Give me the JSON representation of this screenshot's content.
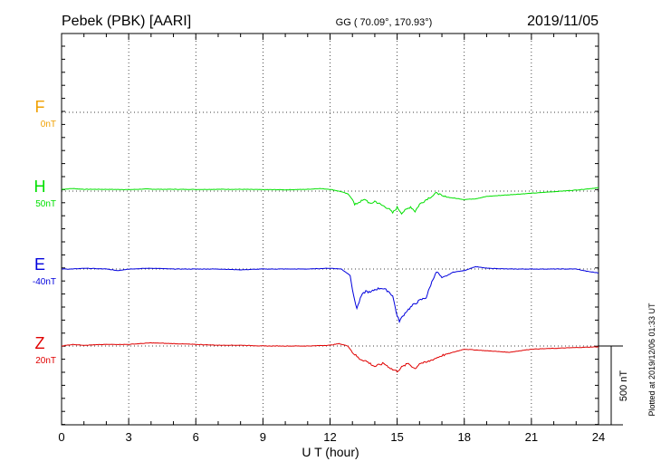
{
  "header": {
    "station": "Pebek (PBK)  [AARI]",
    "coords": "GG ( 70.09°, 170.93°)",
    "date": "2019/11/05"
  },
  "side_note": "Plotted at 2019/12/06 01:33 UT",
  "scale_label": "500 nT",
  "colors": {
    "F": "#f0a000",
    "H": "#00e000",
    "E": "#0000dd",
    "Z": "#e00000",
    "axis": "#000000",
    "grid": "#000000"
  },
  "chart_data": {
    "type": "line",
    "xlabel": "U T (hour)",
    "xlim": [
      0,
      24
    ],
    "xticks": [
      "0",
      "3",
      "6",
      "9",
      "12",
      "15",
      "18",
      "21",
      "24"
    ],
    "grid": true,
    "scale_bar_nT": 500,
    "channels": [
      {
        "name": "F",
        "baseline": "0nT",
        "color": "#f0a000"
      },
      {
        "name": "H",
        "baseline": "50nT",
        "color": "#00e000"
      },
      {
        "name": "E",
        "baseline": "-40nT",
        "color": "#0000dd"
      },
      {
        "name": "Z",
        "baseline": "20nT",
        "color": "#e00000"
      }
    ],
    "series": [
      {
        "name": "H",
        "x": [
          0,
          0.5,
          1,
          2,
          3,
          3.8,
          4.2,
          5,
          6,
          7,
          8,
          9,
          10,
          11,
          11.5,
          12,
          12.5,
          12.8,
          13.0,
          13.1,
          13.3,
          13.6,
          13.8,
          14.0,
          14.3,
          14.6,
          14.8,
          15.0,
          15.2,
          15.4,
          15.6,
          15.8,
          16.0,
          16.2,
          16.4,
          16.6,
          16.8,
          17.0,
          17.5,
          18.0,
          18.5,
          19.0,
          20.0,
          21.0,
          22.0,
          23.0,
          24.0
        ],
        "y": [
          0,
          5,
          0,
          0,
          -2,
          2,
          0,
          0,
          -1,
          0,
          0,
          -2,
          -3,
          0,
          5,
          0,
          -15,
          -30,
          -60,
          -100,
          -80,
          -65,
          -95,
          -75,
          -100,
          -120,
          -150,
          -115,
          -150,
          -130,
          -110,
          -140,
          -95,
          -75,
          -55,
          -40,
          -20,
          -45,
          -55,
          -65,
          -60,
          -45,
          -35,
          -25,
          -15,
          -5,
          10
        ]
      },
      {
        "name": "E",
        "x": [
          0,
          0.5,
          1,
          2,
          2.5,
          3,
          4,
          5,
          6,
          7,
          8,
          9,
          10,
          11,
          12,
          12.5,
          12.9,
          13.05,
          13.2,
          13.4,
          13.6,
          13.8,
          14.0,
          14.3,
          14.6,
          14.8,
          15.0,
          15.1,
          15.4,
          15.7,
          16.0,
          16.3,
          16.5,
          16.7,
          16.8,
          17.0,
          17.5,
          18.0,
          18.5,
          19.0,
          20.0,
          21.0,
          22.0,
          23.0,
          23.5,
          24.0
        ],
        "y": [
          0,
          0,
          5,
          0,
          -10,
          0,
          5,
          0,
          0,
          0,
          -5,
          0,
          0,
          0,
          5,
          0,
          -40,
          -170,
          -250,
          -170,
          -140,
          -150,
          -130,
          -120,
          -140,
          -170,
          -300,
          -330,
          -270,
          -230,
          -200,
          -180,
          -100,
          -30,
          -20,
          -60,
          -20,
          -10,
          15,
          5,
          0,
          0,
          0,
          0,
          -15,
          -25
        ]
      },
      {
        "name": "Z",
        "x": [
          0,
          0.5,
          1,
          2,
          3,
          4,
          5,
          6,
          7,
          8,
          9,
          10,
          11,
          12,
          12.4,
          12.8,
          13.0,
          13.3,
          13.6,
          14.0,
          14.4,
          14.8,
          15.0,
          15.2,
          15.5,
          15.8,
          16.0,
          16.3,
          16.6,
          17.0,
          17.5,
          18.0,
          19.0,
          20.0,
          21.0,
          22.0,
          23.0,
          24.0
        ],
        "y": [
          0,
          10,
          5,
          10,
          10,
          20,
          15,
          10,
          5,
          5,
          0,
          0,
          0,
          5,
          15,
          0,
          -40,
          -80,
          -95,
          -130,
          -110,
          -150,
          -160,
          -135,
          -110,
          -145,
          -110,
          -105,
          -85,
          -60,
          -40,
          -20,
          -30,
          -40,
          -20,
          -15,
          -10,
          -5
        ]
      }
    ]
  }
}
